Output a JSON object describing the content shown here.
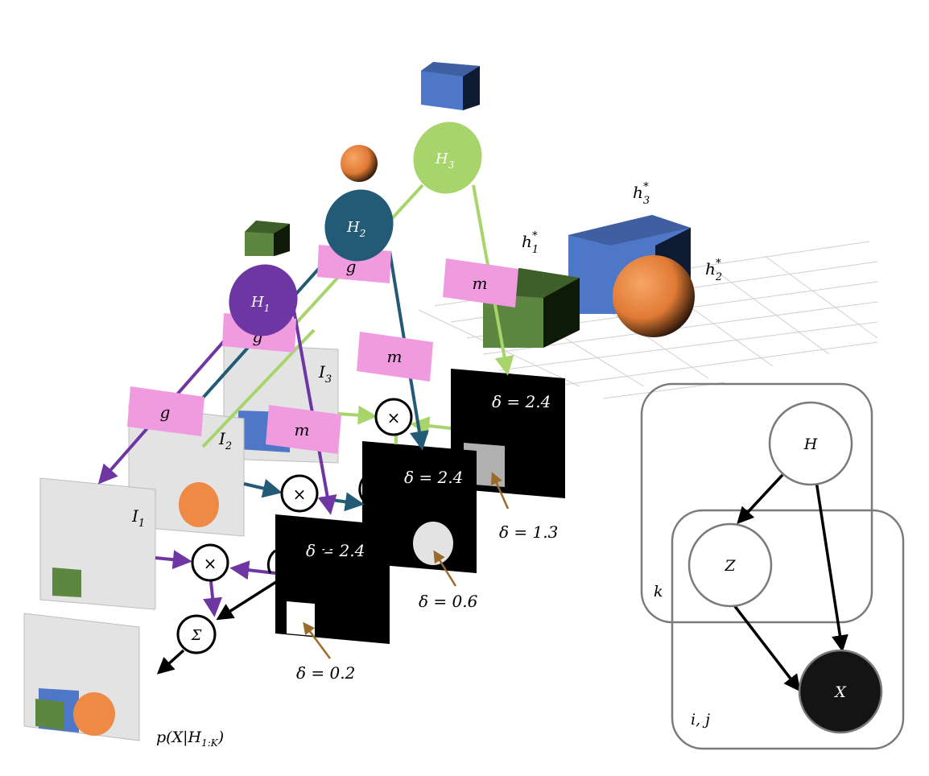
{
  "hidden_nodes": [
    {
      "label": "H",
      "sub": "1",
      "color": "#6e36a3"
    },
    {
      "label": "H",
      "sub": "2",
      "color": "#235b76"
    },
    {
      "label": "H",
      "sub": "3",
      "color": "#a7d46b"
    }
  ],
  "fn_labels": {
    "g": "g",
    "m": "m"
  },
  "images": [
    {
      "label": "I",
      "sub": "1"
    },
    {
      "label": "I",
      "sub": "2"
    },
    {
      "label": "I",
      "sub": "3"
    }
  ],
  "mask_deltas": {
    "m1_bg": "δ = 2.4",
    "m1_obj": "δ = 0.2",
    "m2_bg": "δ = 2.4",
    "m2_obj": "δ = 0.6",
    "m3_bg": "δ = 2.4",
    "m3_obj": "δ = 1.3"
  },
  "operators": {
    "multiply": "×",
    "sum": "Σ"
  },
  "output_label": {
    "prefix": "p(X|H",
    "sub": "1:K",
    "suffix": ")"
  },
  "scene_labels": [
    {
      "label": "h",
      "sub": "1",
      "sup": "*"
    },
    {
      "label": "h",
      "sub": "2",
      "sup": "*"
    },
    {
      "label": "h",
      "sub": "3",
      "sup": "*"
    }
  ],
  "graphical_model": {
    "nodes": {
      "H": "H",
      "Z": "Z",
      "X": "X"
    },
    "plates": {
      "outer": "k",
      "inner": "i, j"
    }
  },
  "colors": {
    "purple": "#6e36a3",
    "teal": "#235b76",
    "lightgreen": "#a7d46b",
    "pink": "#f09be0",
    "blue": "#4f77c8",
    "orange": "#ee8a46",
    "darkgreen": "#5d8640",
    "brownarrow": "#9a6b2a"
  }
}
